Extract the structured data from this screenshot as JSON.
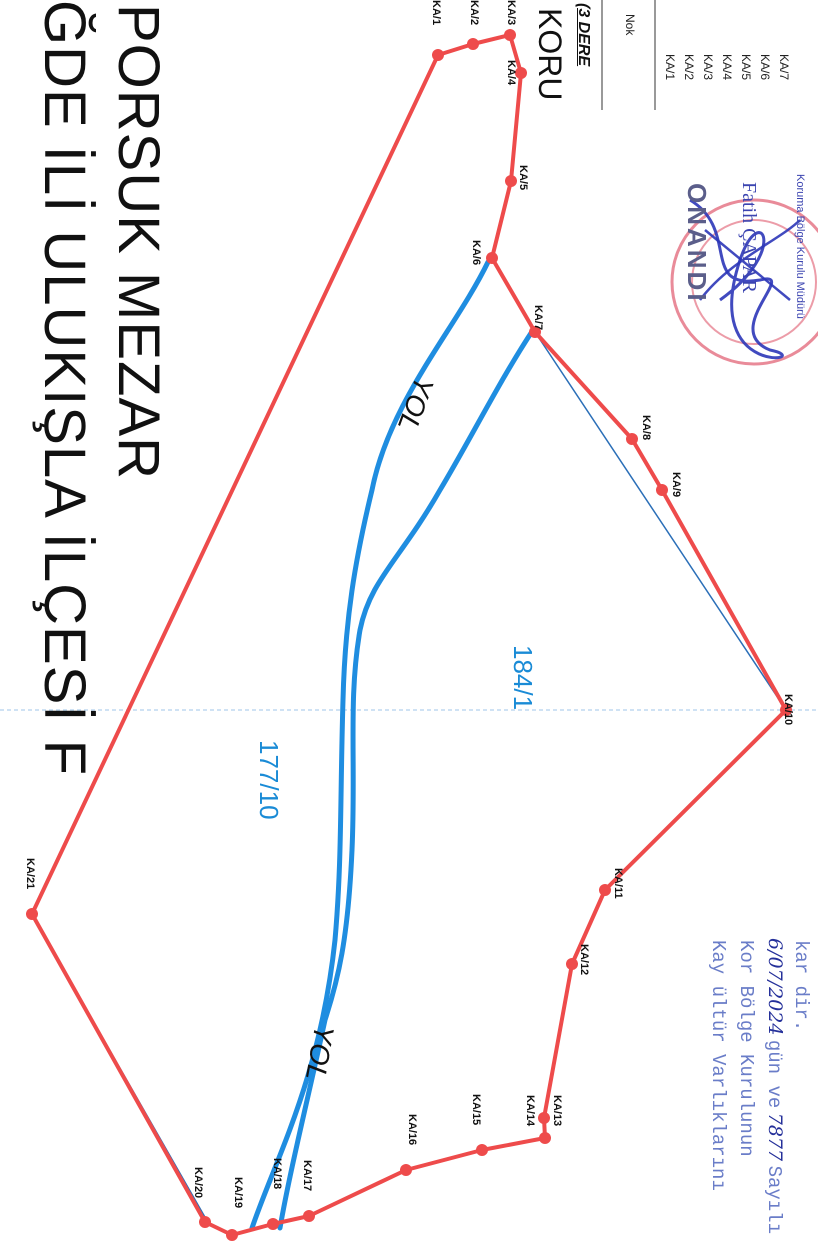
{
  "title": {
    "line1": "NİĞDE İLİ ULUKIŞLA İLÇESİ F",
    "line2": "PORSUK MEZAR"
  },
  "side_header": {
    "heading": "KORU",
    "subheading": "(3 DERE"
  },
  "table": {
    "header": "Nok",
    "rows": [
      "KA/1",
      "KA/2",
      "KA/3",
      "KA/4",
      "KA/5",
      "KA/6",
      "KA/7"
    ]
  },
  "parcels": [
    "177/10",
    "184/1"
  ],
  "road_labels": [
    "YOL",
    "YOL"
  ],
  "points": [
    "KA/1",
    "KA/2",
    "KA/3",
    "KA/4",
    "KA/5",
    "KA/6",
    "KA/7",
    "KA/8",
    "KA/9",
    "KA/10",
    "KA/11",
    "KA/12",
    "KA/13",
    "KA/14",
    "KA/15",
    "KA/16",
    "KA/17",
    "KA/18",
    "KA/19",
    "KA/20",
    "KA/21"
  ],
  "approval": {
    "word": "ONANDI",
    "signer": "Fatih ÇAPAR",
    "office": "Koruma Bölge Kurulu Müdürü"
  },
  "kurul_note": {
    "line1": "Kay      ültür Varlıklarını",
    "line2": "Kor      Bölge Kurulunun",
    "line3_date": "6/07/2024",
    "line3_rest": "gün ve",
    "line3_num": "7877",
    "line3_end": "Sayılı",
    "line4": "kar      dir."
  },
  "colors": {
    "boundary": "#ee4b4b",
    "road": "#1f8de0",
    "parcel_text": "#1a8bd6",
    "stamp": "#3b44b0",
    "seal": "#e05a6e"
  }
}
